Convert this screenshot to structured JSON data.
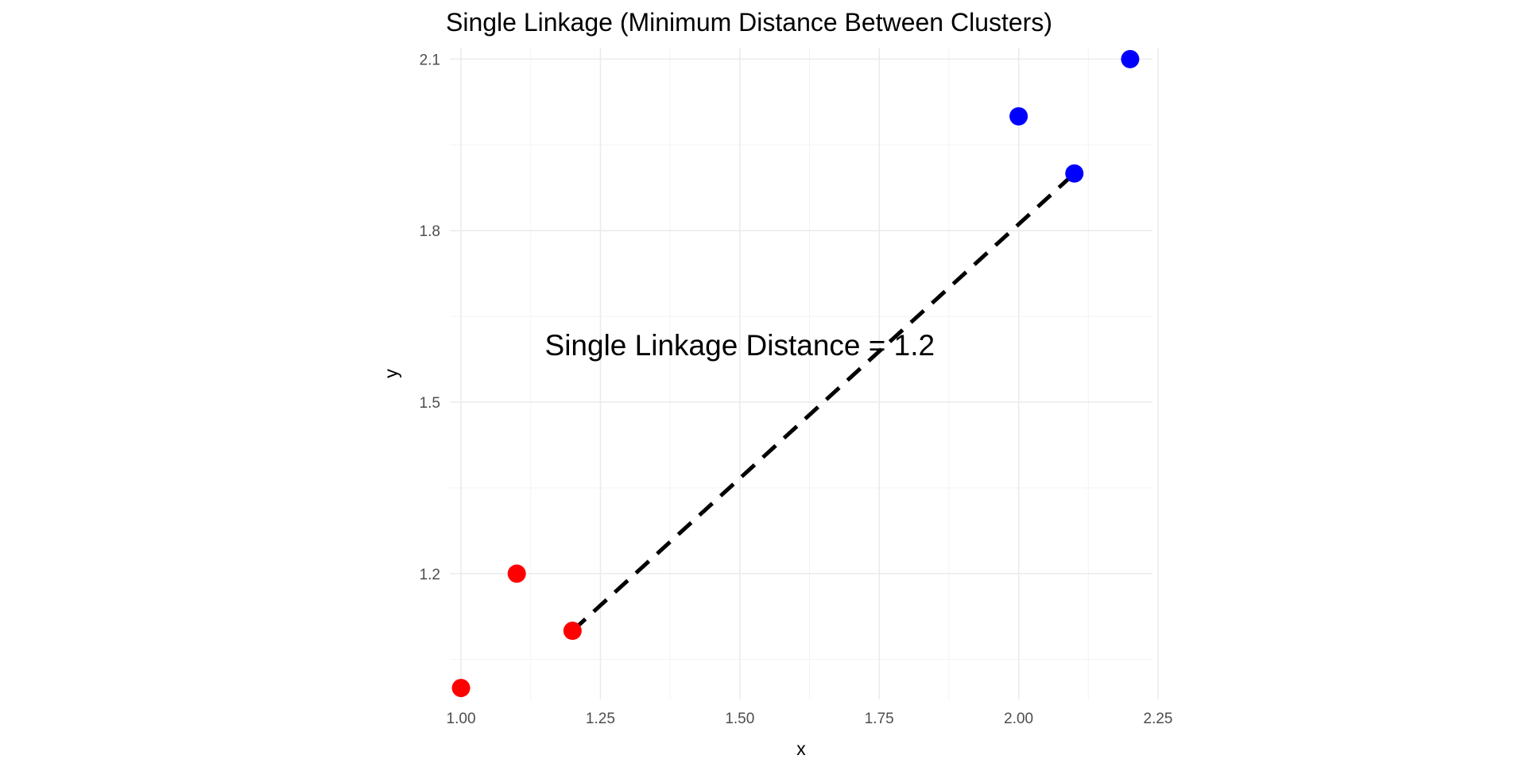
{
  "chart_data": {
    "type": "scatter",
    "title": "Single Linkage (Minimum Distance Between Clusters)",
    "xlabel": "x",
    "ylabel": "y",
    "xlim": [
      0.98,
      2.24
    ],
    "ylim": [
      0.98,
      2.12
    ],
    "x_ticks": [
      {
        "value": 1.0,
        "label": "1.00"
      },
      {
        "value": 1.25,
        "label": "1.25"
      },
      {
        "value": 1.5,
        "label": "1.50"
      },
      {
        "value": 1.75,
        "label": "1.75"
      },
      {
        "value": 2.0,
        "label": "2.00"
      },
      {
        "value": 2.25,
        "label": "2.25"
      }
    ],
    "y_ticks": [
      {
        "value": 1.2,
        "label": "1.2"
      },
      {
        "value": 1.5,
        "label": "1.5"
      },
      {
        "value": 1.8,
        "label": "1.8"
      },
      {
        "value": 2.1,
        "label": "2.1"
      }
    ],
    "grid": true,
    "legend": "none",
    "series": [
      {
        "color": "#ff0000",
        "points": [
          {
            "x": 1.0,
            "y": 1.0
          },
          {
            "x": 1.1,
            "y": 1.2
          },
          {
            "x": 1.2,
            "y": 1.1
          }
        ]
      },
      {
        "color": "#0000ff",
        "points": [
          {
            "x": 2.0,
            "y": 2.0
          },
          {
            "x": 2.1,
            "y": 1.9
          },
          {
            "x": 2.2,
            "y": 2.1
          }
        ]
      }
    ],
    "segment": {
      "x1": 1.2,
      "y1": 1.1,
      "x2": 2.1,
      "y2": 1.9,
      "style": "dashed",
      "color": "#000000"
    },
    "annotations": [
      {
        "text": "Single Linkage Distance = 1.2",
        "x": 1.5,
        "y": 1.6
      }
    ]
  }
}
